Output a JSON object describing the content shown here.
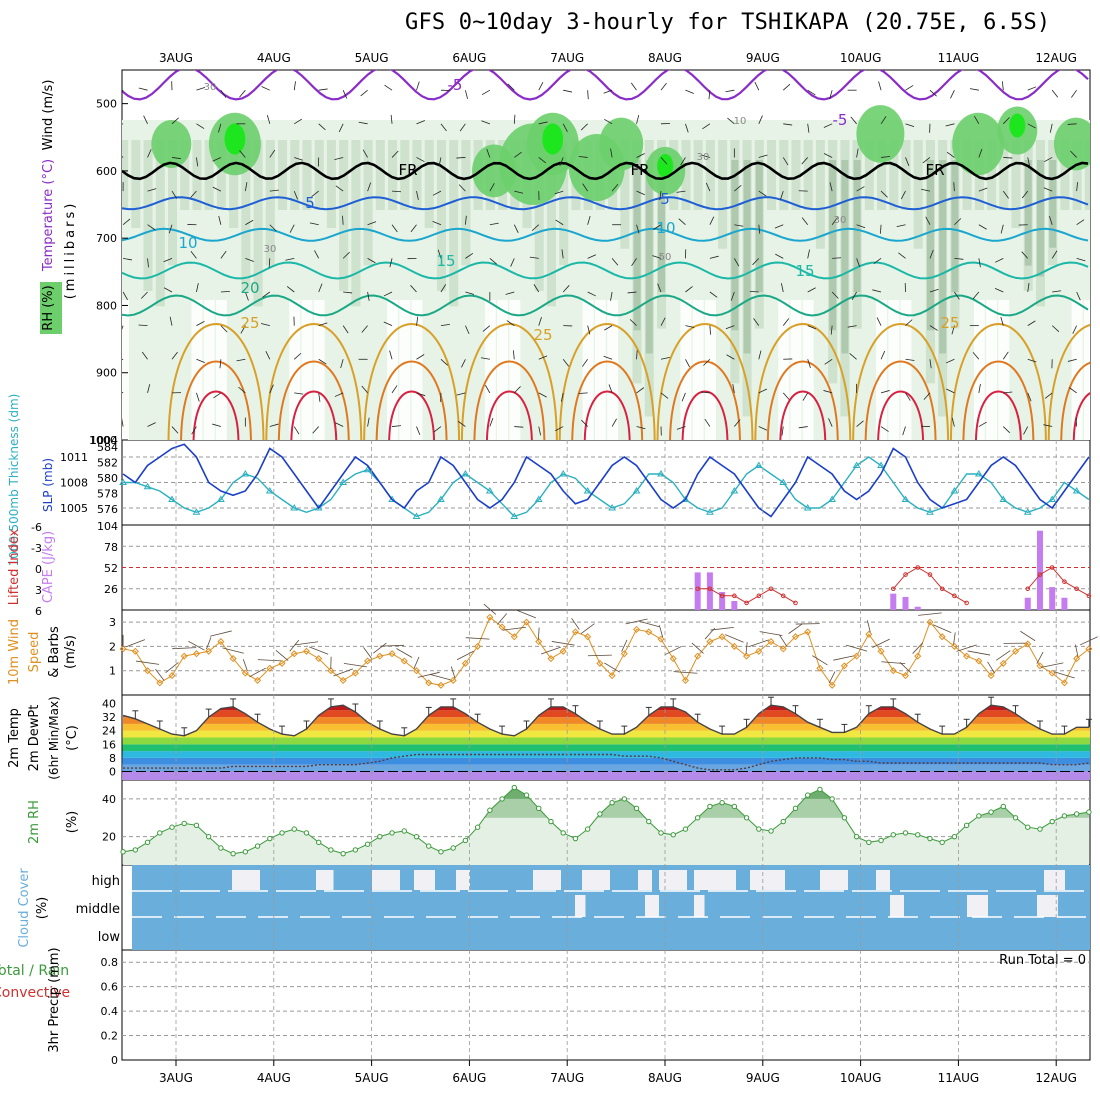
{
  "title": "GFS 0~10day 3-hourly for TSHIKAPA (20.75E, 6.5S)",
  "days": [
    "3AUG",
    "4AUG",
    "5AUG",
    "6AUG",
    "7AUG",
    "8AUG",
    "9AUG",
    "10AUG",
    "11AUG",
    "12AUG"
  ],
  "colors": {
    "rh_light": "#e6f3e6",
    "rh_mid": "#b9d3b9",
    "rh_dark": "#8fb08f",
    "rh_green": "#6ccf6c",
    "rh_bright": "#1ee61e",
    "temp_purple": "#8a2cc8",
    "temp_black": "#000000",
    "temp_blue": "#1f5fd6",
    "temp_cyan": "#1aa6cf",
    "temp_teal": "#1bb8a8",
    "temp_green": "#1aa886",
    "temp_gold": "#d9a028",
    "temp_orange": "#e07820",
    "temp_red": "#d82040",
    "slp": "#1b3fc8",
    "thick": "#2bb0c0",
    "cape": "#c57cf0",
    "li": "#d03030",
    "wind": "#e09020",
    "temp2m": "#444444",
    "rh2m": "#3a9a3a",
    "cloud_blue": "#6aaedb",
    "cloud_white": "#f0f0f5"
  },
  "panels": {
    "upper": {
      "label_wind": "Wind (m/s)",
      "label_temp": "Temperature (°C)",
      "label_rh": "RH (%)",
      "label_mb": "(millibars)",
      "yticks": [
        "500",
        "600",
        "700",
        "800",
        "900",
        "1000"
      ],
      "contour_labels": [
        "-5",
        "-5",
        "FR",
        "FR",
        "FR",
        "5",
        "5",
        "10",
        "10",
        "15",
        "15",
        "20",
        "25",
        "25",
        "25",
        "30",
        "30",
        "30",
        "30",
        "10",
        "50"
      ]
    },
    "slp": {
      "label_thick": "1000-500mb Thickness (dm)",
      "label_slp": "SLP (mb)",
      "yticks_left": [
        "584",
        "582",
        "580",
        "578",
        "576"
      ],
      "yticks_right": [
        "1011",
        "1008",
        "1005"
      ],
      "top_left": "1004"
    },
    "cape": {
      "label_li": "Lifted Index",
      "label_cape": "CAPE (J/kg)",
      "yticks_left": [
        "-6",
        "-3",
        "0",
        "3",
        "6"
      ],
      "yticks_right": [
        "104",
        "78",
        "52",
        "26"
      ]
    },
    "wind": {
      "label": "10m Wind",
      "label2": "Speed",
      "label3": "& Barbs",
      "unit": "(m/s)",
      "yticks": [
        "3",
        "2",
        "1"
      ]
    },
    "temp": {
      "label": "2m Temp",
      "label2": "2m DewPt",
      "label3": "(6hr Min/Max)",
      "unit": "(°C)",
      "yticks": [
        "40",
        "32",
        "24",
        "16",
        "8",
        "0"
      ]
    },
    "rh": {
      "label": "2m RH",
      "unit": "(%)",
      "yticks": [
        "40",
        "20"
      ]
    },
    "cloud": {
      "label": "Cloud Cover",
      "unit": "(%)",
      "levels": [
        "high",
        "middle",
        "low"
      ]
    },
    "precip": {
      "label_total": "Total / Rain",
      "label_conv": "Convective",
      "label_y": "3hr Precip (mm)",
      "yticks": [
        "0.8",
        "0.6",
        "0.4",
        "0.2",
        "0"
      ],
      "run_total": "Run Total = 0"
    }
  },
  "chart_data": [
    {
      "type": "line",
      "name": "slp_thickness",
      "title": "",
      "x_step_hours": 3,
      "start": "2AUG 12Z",
      "series": [
        {
          "name": "SLP (mb)",
          "values": [
            1009,
            1008,
            1010,
            1011,
            1012,
            1012.5,
            1011,
            1008,
            1007,
            1006.5,
            1007,
            1009,
            1012,
            1011,
            1009,
            1007,
            1005,
            1007,
            1009,
            1011,
            1010,
            1008,
            1006,
            1005,
            1007,
            1008,
            1011,
            1010,
            1008,
            1006,
            1005,
            1006,
            1008,
            1011,
            1010,
            1009,
            1007,
            1005.5,
            1006,
            1008,
            1010,
            1011,
            1010,
            1008,
            1006,
            1005,
            1006,
            1009,
            1011,
            1010,
            1009,
            1007,
            1005,
            1004,
            1006,
            1008,
            1011,
            1010,
            1009,
            1007,
            1006,
            1007,
            1009,
            1012,
            1011,
            1008,
            1006,
            1005,
            1005.5,
            1006,
            1008,
            1010,
            1011,
            1010,
            1008,
            1006,
            1005,
            1007,
            1009,
            1011
          ]
        },
        {
          "name": "1000-500mb Thickness (dm)",
          "values": [
            580,
            580,
            579.5,
            579,
            578,
            577,
            576.5,
            577,
            578,
            580,
            581,
            580.5,
            579,
            578,
            577,
            576.5,
            577,
            578,
            580,
            581,
            581.5,
            580,
            578,
            577,
            576,
            576.5,
            578,
            580,
            581,
            580,
            579,
            577.5,
            576,
            576.5,
            578,
            580,
            581,
            580.5,
            579,
            578,
            577,
            577.5,
            579,
            581,
            581,
            580,
            578,
            577,
            576.5,
            577,
            579,
            581,
            582,
            581,
            580,
            578,
            577,
            577,
            578,
            580,
            582,
            583,
            582,
            580,
            578,
            577,
            576.5,
            577,
            579,
            581,
            581,
            580,
            578,
            577,
            576.5,
            577,
            578,
            580,
            579,
            578
          ]
        }
      ],
      "ylim_thick": [
        575,
        585
      ],
      "ylim_slp": [
        1003,
        1013
      ]
    },
    {
      "type": "bar",
      "name": "cape_li",
      "series": [
        {
          "name": "CAPE (J/kg)",
          "values": [
            0,
            0,
            0,
            0,
            0,
            0,
            0,
            0,
            0,
            0,
            0,
            0,
            0,
            0,
            0,
            0,
            0,
            0,
            0,
            0,
            0,
            0,
            0,
            0,
            0,
            0,
            0,
            0,
            0,
            0,
            0,
            0,
            0,
            0,
            0,
            0,
            0,
            0,
            0,
            0,
            0,
            0,
            0,
            0,
            0,
            0,
            0,
            46,
            46,
            22,
            11,
            0,
            0,
            0,
            0,
            0,
            0,
            0,
            0,
            0,
            0,
            0,
            0,
            20,
            16,
            4,
            0,
            0,
            0,
            0,
            0,
            0,
            0,
            0,
            15,
            97,
            28,
            15,
            0,
            0
          ]
        },
        {
          "name": "Lifted Index",
          "values": [
            6,
            6,
            6,
            6,
            6,
            6,
            6,
            6,
            6,
            6,
            6,
            6,
            6,
            6,
            6,
            6,
            6,
            6,
            6,
            6,
            6,
            6,
            6,
            6,
            6,
            6,
            6,
            6,
            6,
            6,
            6,
            6,
            6,
            6,
            6,
            6,
            6,
            6,
            6,
            6,
            6,
            6,
            6,
            6,
            6,
            6,
            6,
            3,
            3,
            4,
            4,
            5,
            4,
            3,
            4,
            5,
            6,
            6,
            6,
            6,
            6,
            6,
            6,
            3,
            1,
            0,
            1,
            3,
            4,
            5,
            6,
            6,
            6,
            6,
            3,
            1,
            0,
            2,
            3,
            4
          ]
        }
      ],
      "ylim_cape": [
        0,
        104
      ],
      "ylim_li": [
        6,
        -6
      ]
    },
    {
      "type": "line",
      "name": "wind10m",
      "series": [
        {
          "name": "Speed (m/s)",
          "values": [
            1.9,
            1.8,
            1.0,
            0.5,
            0.8,
            1.6,
            1.7,
            1.8,
            2.2,
            1.5,
            0.9,
            0.6,
            1.1,
            1.3,
            1.7,
            1.8,
            1.5,
            1.0,
            0.6,
            0.9,
            1.4,
            1.6,
            1.7,
            1.4,
            1.0,
            0.5,
            0.4,
            0.6,
            1.3,
            2.0,
            3.2,
            2.8,
            2.4,
            3.0,
            2.2,
            1.5,
            1.8,
            2.6,
            2.4,
            1.3,
            0.8,
            1.7,
            2.7,
            2.6,
            2.3,
            1.5,
            0.6,
            1.6,
            2.2,
            2.4,
            2.0,
            1.6,
            1.8,
            2.2,
            1.9,
            2.4,
            2.6,
            1.1,
            0.4,
            1.2,
            1.6,
            2.5,
            1.8,
            1.0,
            0.8,
            1.6,
            3.0,
            2.4,
            2.0,
            1.6,
            1.4,
            0.8,
            1.3,
            1.8,
            2.1,
            1.2,
            0.9,
            0.5,
            1.5,
            1.9
          ]
        }
      ],
      "ylim": [
        0,
        3.5
      ]
    },
    {
      "type": "area",
      "name": "temp2m",
      "series": [
        {
          "name": "2m Temp (°C)",
          "values": [
            33,
            31,
            28,
            25,
            22,
            21,
            24,
            32,
            37,
            38,
            34,
            29,
            25,
            22,
            21,
            25,
            33,
            38,
            39,
            35,
            29,
            25,
            22,
            21,
            25,
            33,
            38,
            38,
            34,
            29,
            25,
            22,
            21,
            25,
            33,
            38,
            38,
            34,
            29,
            25,
            22,
            22,
            26,
            33,
            38,
            38,
            35,
            29,
            25,
            22,
            22,
            26,
            34,
            39,
            38,
            34,
            29,
            26,
            23,
            23,
            26,
            34,
            38,
            38,
            34,
            29,
            25,
            22,
            22,
            26,
            34,
            39,
            38,
            34,
            29,
            25,
            22,
            22,
            26,
            26
          ]
        },
        {
          "name": "2m DewPt (°C)",
          "values": [
            2,
            2,
            2,
            2,
            2,
            2,
            2,
            2,
            2,
            3,
            3,
            3,
            3,
            3,
            3,
            3,
            4,
            4,
            4,
            4,
            5,
            6,
            8,
            9,
            10,
            10,
            10,
            10,
            10,
            10,
            10,
            10,
            10,
            10,
            10,
            10,
            10,
            10,
            10,
            10,
            10,
            9,
            9,
            9,
            8,
            6,
            4,
            2,
            1,
            1,
            1,
            2,
            4,
            6,
            7,
            8,
            8,
            8,
            7,
            7,
            6,
            6,
            5,
            5,
            5,
            5,
            5,
            5,
            5,
            5,
            5,
            5,
            5,
            5,
            5,
            5,
            4,
            4,
            4,
            5
          ]
        }
      ],
      "ylim": [
        -5,
        45
      ]
    },
    {
      "type": "area",
      "name": "rh2m",
      "series": [
        {
          "name": "2m RH (%)",
          "values": [
            12,
            13,
            17,
            22,
            25,
            27,
            26,
            20,
            14,
            11,
            12,
            15,
            19,
            22,
            24,
            22,
            17,
            13,
            11,
            13,
            16,
            20,
            22,
            23,
            20,
            15,
            12,
            14,
            18,
            25,
            34,
            40,
            46,
            42,
            35,
            28,
            22,
            19,
            24,
            32,
            38,
            40,
            35,
            28,
            22,
            21,
            24,
            30,
            36,
            38,
            36,
            30,
            24,
            23,
            28,
            35,
            42,
            45,
            40,
            30,
            20,
            17,
            18,
            21,
            22,
            21,
            19,
            17,
            20,
            26,
            31,
            33,
            36,
            30,
            25,
            24,
            28,
            31,
            32,
            33
          ]
        }
      ],
      "ylim": [
        5,
        50
      ]
    },
    {
      "type": "bar",
      "name": "precip3hr",
      "series": [
        {
          "name": "3hr Precip (mm)",
          "values": []
        }
      ],
      "ylim": [
        0,
        0.9
      ]
    }
  ]
}
